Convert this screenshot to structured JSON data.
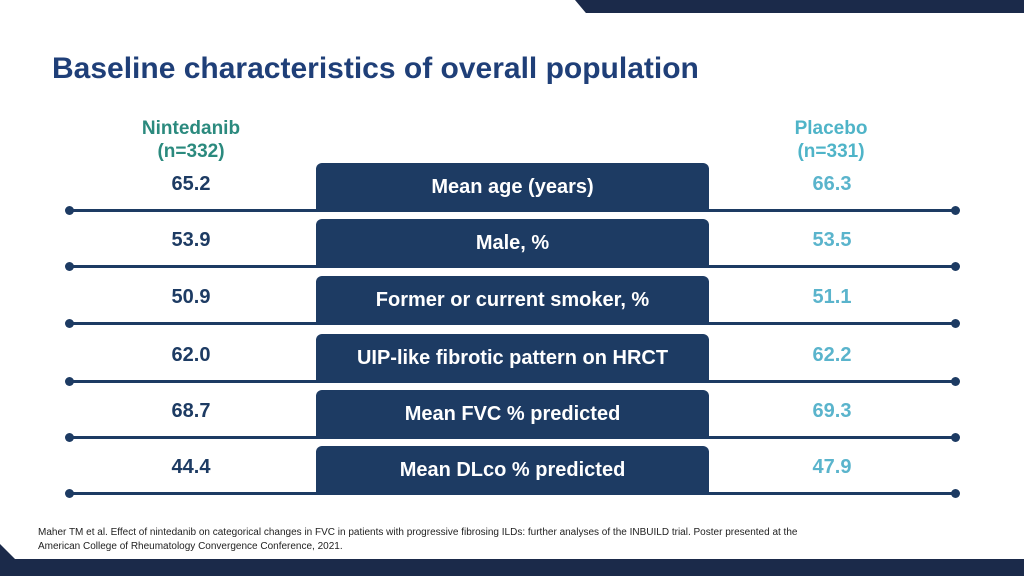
{
  "title": "Baseline characteristics of overall population",
  "columns": {
    "left": {
      "name": "Nintedanib",
      "n": "(n=332)"
    },
    "right": {
      "name": "Placebo",
      "n": "(n=331)"
    }
  },
  "rows": [
    {
      "label": "Mean age (years)",
      "nintedanib": "65.2",
      "placebo": "66.3"
    },
    {
      "label": "Male, %",
      "nintedanib": "53.9",
      "placebo": "53.5"
    },
    {
      "label": "Former or current smoker, %",
      "nintedanib": "50.9",
      "placebo": "51.1"
    },
    {
      "label": "UIP-like fibrotic pattern on HRCT",
      "nintedanib": "62.0",
      "placebo": "62.2"
    },
    {
      "label": "Mean FVC % predicted",
      "nintedanib": "68.7",
      "placebo": "69.3"
    },
    {
      "label": "Mean DLco % predicted",
      "nintedanib": "44.4",
      "placebo": "47.9"
    }
  ],
  "footnote": {
    "line1": "Maher TM et al. Effect of nintedanib on categorical changes in FVC in patients with progressive fibrosing ILDs: further analyses of the INBUILD trial. Poster presented at the",
    "line2": "American College of Rheumatology Convergence Conference, 2021."
  },
  "colors": {
    "navy": "#1d3b63",
    "title_blue": "#1f3f78",
    "nintedanib_teal": "#2b8a7e",
    "placebo_cyan": "#4fb4c8"
  }
}
